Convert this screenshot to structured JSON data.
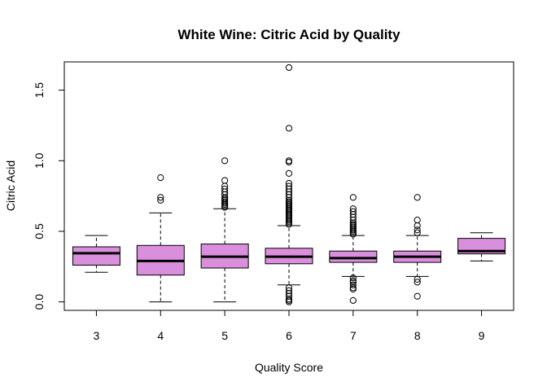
{
  "chart_data": {
    "type": "boxplot",
    "title": "White Wine: Citric Acid by Quality",
    "xlabel": "Quality Score",
    "ylabel": "Citric Acid",
    "categories": [
      "3",
      "4",
      "5",
      "6",
      "7",
      "8",
      "9"
    ],
    "ylim": [
      -0.06,
      1.7
    ],
    "yticks": [
      0.0,
      0.5,
      1.0,
      1.5
    ],
    "ytick_labels": [
      "0.0",
      "0.5",
      "1.0",
      "1.5"
    ],
    "box_color": "#d98fdc",
    "grid": false,
    "legend": "none",
    "boxes": [
      {
        "category": "3",
        "whisker_low": 0.21,
        "q1": 0.26,
        "median": 0.345,
        "q3": 0.39,
        "whisker_high": 0.47,
        "outliers": []
      },
      {
        "category": "4",
        "whisker_low": 0.0,
        "q1": 0.19,
        "median": 0.29,
        "q3": 0.4,
        "whisker_high": 0.63,
        "outliers": [
          0.72,
          0.74,
          0.88
        ]
      },
      {
        "category": "5",
        "whisker_low": 0.0,
        "q1": 0.24,
        "median": 0.32,
        "q3": 0.41,
        "whisker_high": 0.66,
        "outliers": [
          0.67,
          0.68,
          0.69,
          0.7,
          0.71,
          0.72,
          0.73,
          0.74,
          0.76,
          0.78,
          0.8,
          0.82,
          0.86,
          1.0
        ]
      },
      {
        "category": "6",
        "whisker_low": 0.12,
        "q1": 0.27,
        "median": 0.32,
        "q3": 0.38,
        "whisker_high": 0.54,
        "outliers": [
          0.0,
          0.01,
          0.02,
          0.04,
          0.06,
          0.08,
          0.1,
          0.55,
          0.56,
          0.57,
          0.58,
          0.59,
          0.6,
          0.61,
          0.62,
          0.63,
          0.64,
          0.65,
          0.66,
          0.67,
          0.68,
          0.69,
          0.7,
          0.71,
          0.72,
          0.74,
          0.76,
          0.78,
          0.8,
          0.82,
          0.84,
          0.91,
          0.99,
          1.0,
          1.23,
          1.66
        ]
      },
      {
        "category": "7",
        "whisker_low": 0.18,
        "q1": 0.28,
        "median": 0.31,
        "q3": 0.36,
        "whisker_high": 0.47,
        "outliers": [
          0.01,
          0.09,
          0.1,
          0.12,
          0.14,
          0.15,
          0.17,
          0.48,
          0.49,
          0.5,
          0.51,
          0.52,
          0.53,
          0.54,
          0.55,
          0.56,
          0.58,
          0.6,
          0.62,
          0.64,
          0.66,
          0.74
        ]
      },
      {
        "category": "8",
        "whisker_low": 0.18,
        "q1": 0.28,
        "median": 0.32,
        "q3": 0.36,
        "whisker_high": 0.47,
        "outliers": [
          0.04,
          0.14,
          0.16,
          0.49,
          0.51,
          0.54,
          0.58,
          0.74
        ]
      },
      {
        "category": "9",
        "whisker_low": 0.29,
        "q1": 0.34,
        "median": 0.36,
        "q3": 0.45,
        "whisker_high": 0.49,
        "outliers": []
      }
    ]
  }
}
